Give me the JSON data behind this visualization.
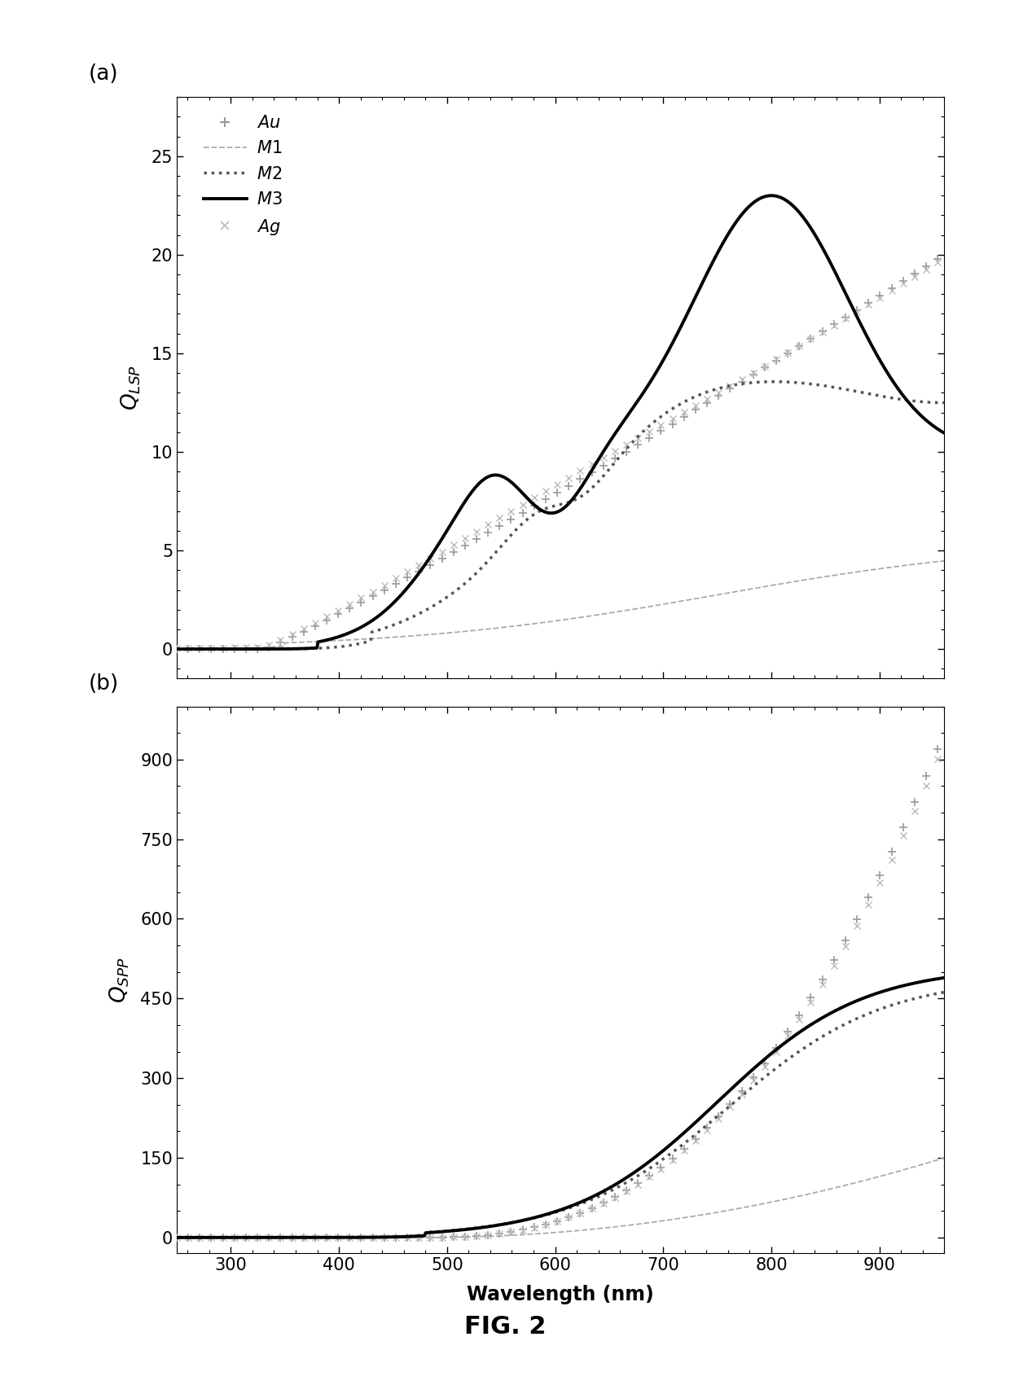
{
  "wavelength_range": [
    250,
    960
  ],
  "panel_a": {
    "ylim": [
      -1.5,
      28
    ],
    "yticks": [
      0,
      5,
      10,
      15,
      20,
      25
    ],
    "ylabel": "$Q_{LSP}$",
    "panel_label": "(a)"
  },
  "panel_b": {
    "ylim": [
      -30,
      1000
    ],
    "yticks": [
      0,
      150,
      300,
      450,
      600,
      750,
      900
    ],
    "ylabel": "$Q_{SPP}$",
    "panel_label": "(b)"
  },
  "xlabel": "Wavelength (nm)",
  "xticks": [
    300,
    400,
    500,
    600,
    700,
    800,
    900
  ],
  "fig_label": "FIG. 2",
  "background": "#ffffff"
}
